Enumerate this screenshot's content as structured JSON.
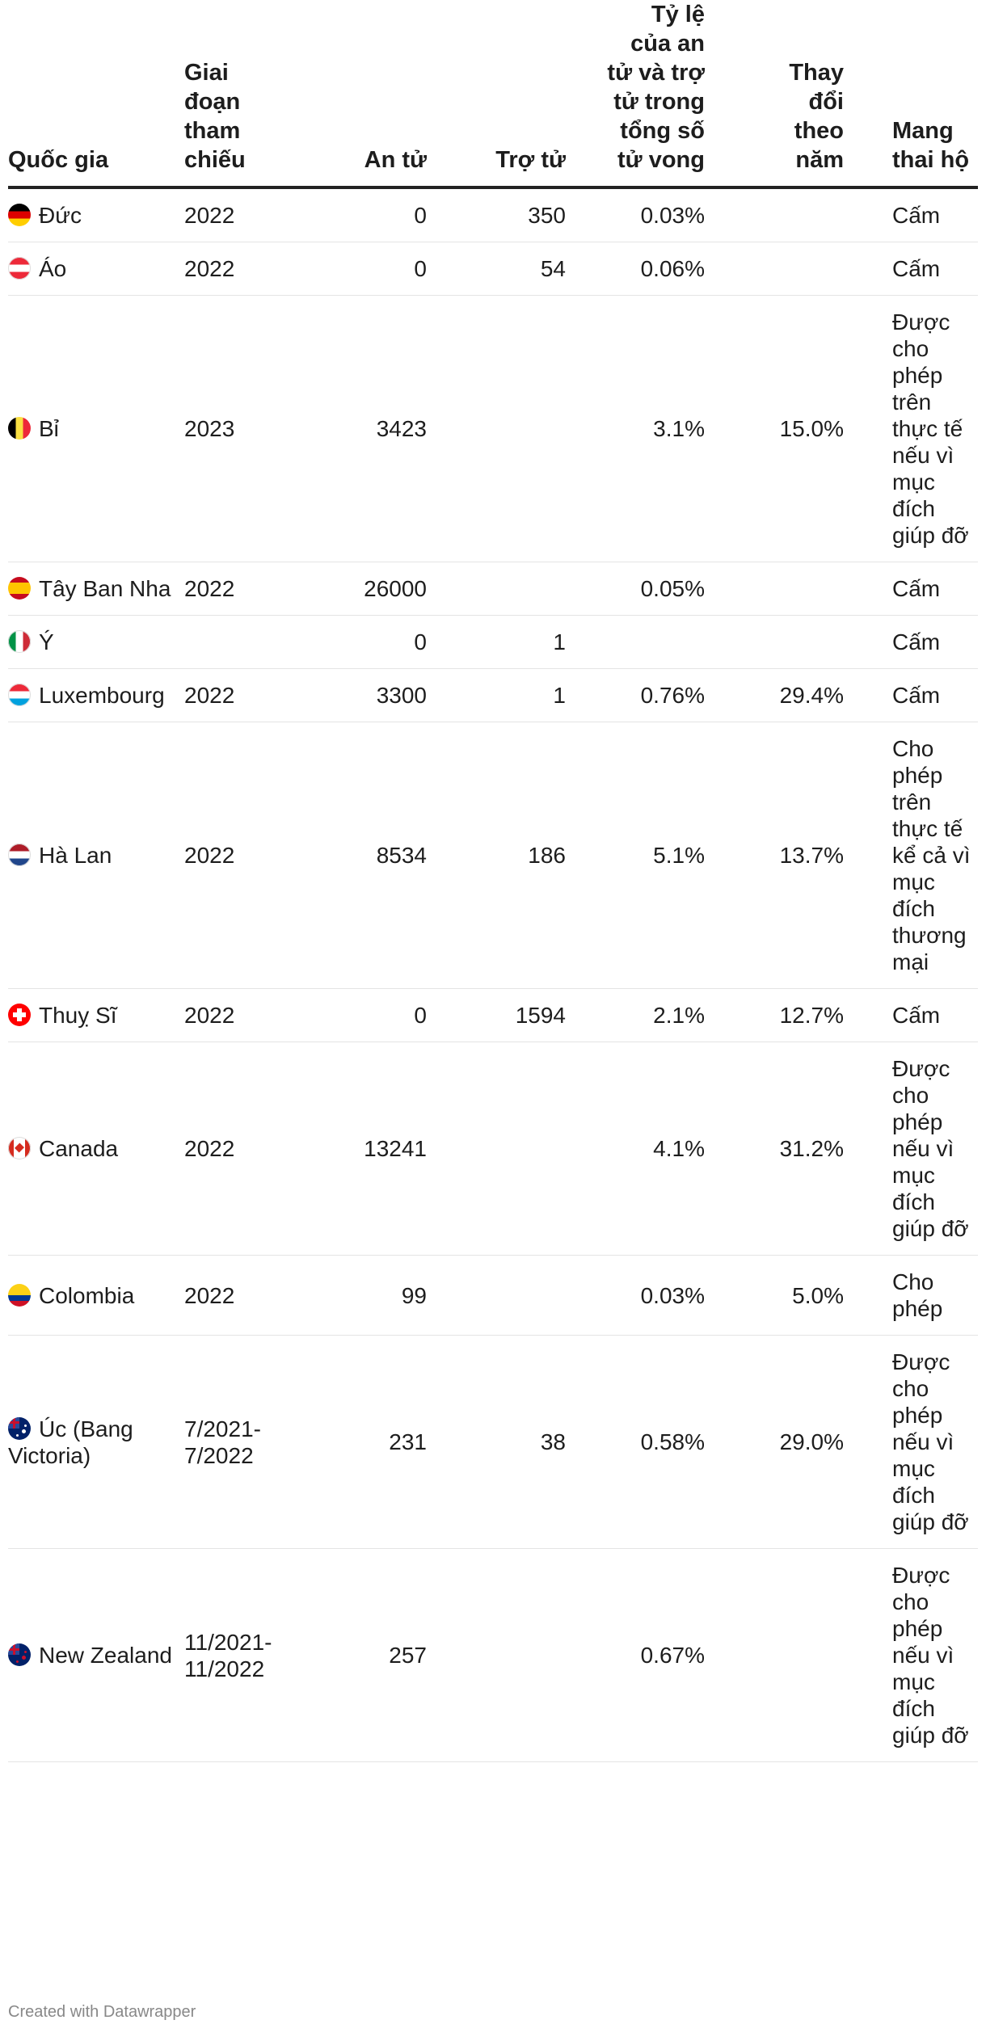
{
  "table": {
    "headers": {
      "country": "Quốc gia",
      "period": "Giai đoạn tham chiếu",
      "euthanasia": "An tử",
      "assisted": "Trợ tử",
      "share": "Tỷ lệ của an tử và trợ tử trong tổng số tử vong",
      "change": "Thay đổi theo năm",
      "surrogacy": "Mang thai hộ"
    },
    "rows": [
      {
        "flag": "de-flag-icon",
        "country": "Đức",
        "period": "2022",
        "euthanasia": "0",
        "assisted": "350",
        "share": "0.03%",
        "change": "",
        "surrogacy": "Cấm"
      },
      {
        "flag": "at-flag-icon",
        "country": "Áo",
        "period": "2022",
        "euthanasia": "0",
        "assisted": "54",
        "share": "0.06%",
        "change": "",
        "surrogacy": "Cấm"
      },
      {
        "flag": "be-flag-icon",
        "country": "Bỉ",
        "period": "2023",
        "euthanasia": "3423",
        "assisted": "",
        "share": "3.1%",
        "change": "15.0%",
        "surrogacy": "Được cho phép trên thực tế nếu vì mục đích giúp đỡ"
      },
      {
        "flag": "es-flag-icon",
        "country": "Tây Ban Nha",
        "period": "2022",
        "euthanasia": "26000",
        "assisted": "",
        "share": "0.05%",
        "change": "",
        "surrogacy": "Cấm"
      },
      {
        "flag": "it-flag-icon",
        "country": "Ý",
        "period": "",
        "euthanasia": "0",
        "assisted": "1",
        "share": "",
        "change": "",
        "surrogacy": "Cấm"
      },
      {
        "flag": "lu-flag-icon",
        "country": "Luxembourg",
        "period": "2022",
        "euthanasia": "3300",
        "assisted": "1",
        "share": "0.76%",
        "change": "29.4%",
        "surrogacy": "Cấm"
      },
      {
        "flag": "nl-flag-icon",
        "country": "Hà Lan",
        "period": "2022",
        "euthanasia": "8534",
        "assisted": "186",
        "share": "5.1%",
        "change": "13.7%",
        "surrogacy": "Cho phép trên thực tế kể cả vì mục đích thương mại"
      },
      {
        "flag": "ch-flag-icon",
        "country": "Thuỵ Sĩ",
        "period": "2022",
        "euthanasia": "0",
        "assisted": "1594",
        "share": "2.1%",
        "change": "12.7%",
        "surrogacy": "Cấm"
      },
      {
        "flag": "ca-flag-icon",
        "country": "Canada",
        "period": "2022",
        "euthanasia": "13241",
        "assisted": "",
        "share": "4.1%",
        "change": "31.2%",
        "surrogacy": "Được cho phép nếu vì mục đích giúp đỡ"
      },
      {
        "flag": "co-flag-icon",
        "country": "Colombia",
        "period": "2022",
        "euthanasia": "99",
        "assisted": "",
        "share": "0.03%",
        "change": "5.0%",
        "surrogacy": "Cho phép"
      },
      {
        "flag": "au-flag-icon",
        "country": "Úc (Bang Victoria)",
        "period": "7/2021-7/2022",
        "euthanasia": "231",
        "assisted": "38",
        "share": "0.58%",
        "change": "29.0%",
        "surrogacy": "Được cho phép nếu vì mục đích giúp đỡ"
      },
      {
        "flag": "nz-flag-icon",
        "country": "New Zealand",
        "period": "11/2021-11/2022",
        "euthanasia": "257",
        "assisted": "",
        "share": "0.67%",
        "change": "",
        "surrogacy": "Được cho phép nếu vì mục đích giúp đỡ"
      }
    ]
  },
  "footer": "Created with Datawrapper"
}
